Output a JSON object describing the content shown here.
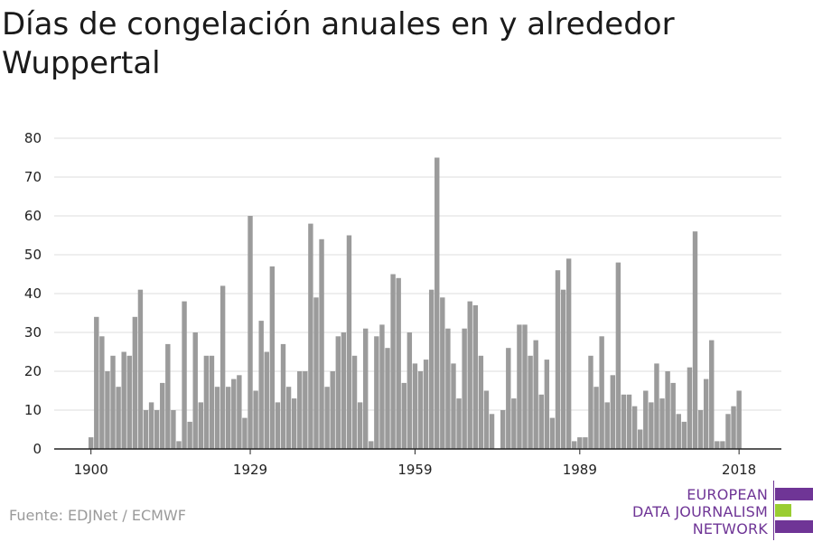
{
  "title": "Días de congelación anuales en y alrededor Wuppertal",
  "source": "Fuente: EDJNet / ECMWF",
  "logo": {
    "line1": "EUROPEAN",
    "line2": "DATA JOURNALISM",
    "line3": "NETWORK",
    "colors": {
      "purple": "#6f3596",
      "green": "#9acd32"
    }
  },
  "colors": {
    "bar": "#9b9b9b",
    "grid": "#dddddd",
    "axis": "#222222"
  },
  "chart_data": {
    "type": "bar",
    "title": "Días de congelación anuales en y alrededor Wuppertal",
    "xlabel": "",
    "ylabel": "",
    "ylim": [
      0,
      80
    ],
    "yticks": [
      0,
      10,
      20,
      30,
      40,
      50,
      60,
      70,
      80
    ],
    "xticks": [
      1900,
      1929,
      1959,
      1989,
      2018
    ],
    "grid": true,
    "x": [
      1900,
      1901,
      1902,
      1903,
      1904,
      1905,
      1906,
      1907,
      1908,
      1909,
      1910,
      1911,
      1912,
      1913,
      1914,
      1915,
      1916,
      1917,
      1918,
      1919,
      1920,
      1921,
      1922,
      1923,
      1924,
      1925,
      1926,
      1927,
      1928,
      1929,
      1930,
      1931,
      1932,
      1933,
      1934,
      1935,
      1936,
      1937,
      1938,
      1939,
      1940,
      1941,
      1942,
      1943,
      1944,
      1945,
      1946,
      1947,
      1948,
      1949,
      1950,
      1951,
      1952,
      1953,
      1954,
      1955,
      1956,
      1957,
      1958,
      1959,
      1960,
      1961,
      1962,
      1963,
      1964,
      1965,
      1966,
      1967,
      1968,
      1969,
      1970,
      1971,
      1972,
      1973,
      1974,
      1975,
      1976,
      1977,
      1978,
      1979,
      1980,
      1981,
      1982,
      1983,
      1984,
      1985,
      1986,
      1987,
      1988,
      1989,
      1990,
      1991,
      1992,
      1993,
      1994,
      1995,
      1996,
      1997,
      1998,
      1999,
      2000,
      2001,
      2002,
      2003,
      2004,
      2005,
      2006,
      2007,
      2008,
      2009,
      2010,
      2011,
      2012,
      2013,
      2014,
      2015,
      2016,
      2017,
      2018
    ],
    "values": [
      3,
      34,
      29,
      20,
      24,
      16,
      25,
      24,
      34,
      41,
      10,
      12,
      10,
      17,
      27,
      10,
      2,
      38,
      7,
      30,
      12,
      24,
      24,
      16,
      42,
      16,
      18,
      19,
      8,
      60,
      15,
      33,
      25,
      47,
      12,
      27,
      16,
      13,
      20,
      20,
      58,
      39,
      54,
      16,
      20,
      29,
      30,
      55,
      24,
      12,
      31,
      2,
      29,
      32,
      26,
      45,
      44,
      17,
      30,
      22,
      20,
      23,
      41,
      75,
      39,
      31,
      22,
      13,
      31,
      38,
      37,
      24,
      15,
      9,
      0,
      10,
      26,
      13,
      32,
      32,
      24,
      28,
      14,
      23,
      8,
      46,
      41,
      49,
      2,
      3,
      3,
      24,
      16,
      29,
      12,
      19,
      48,
      14,
      14,
      11,
      5,
      15,
      12,
      22,
      13,
      20,
      17,
      9,
      7,
      21,
      56,
      10,
      18,
      28,
      2,
      2,
      9,
      11,
      15
    ]
  }
}
